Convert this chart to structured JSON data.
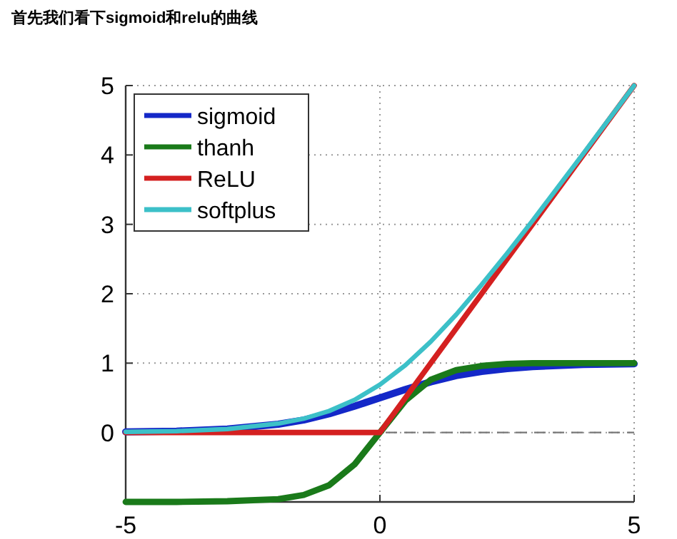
{
  "chart_data": {
    "type": "line",
    "title": "首先我们看下sigmoid和relu的曲线",
    "x": [
      -5,
      -4,
      -3,
      -2,
      -1.5,
      -1,
      -0.5,
      0,
      0.5,
      1,
      1.5,
      2,
      2.5,
      3,
      4,
      5
    ],
    "series": [
      {
        "name": "sigmoid",
        "color": "#1428c8",
        "values": [
          0.01,
          0.02,
          0.05,
          0.12,
          0.18,
          0.27,
          0.38,
          0.5,
          0.62,
          0.73,
          0.82,
          0.88,
          0.92,
          0.95,
          0.98,
          0.99
        ]
      },
      {
        "name": "thanh",
        "color": "#1a7a1a",
        "values": [
          -1,
          -1,
          -0.99,
          -0.96,
          -0.9,
          -0.76,
          -0.46,
          0,
          0.46,
          0.76,
          0.9,
          0.96,
          0.99,
          1,
          1,
          1
        ]
      },
      {
        "name": "ReLU",
        "color": "#d42020",
        "values": [
          0,
          0,
          0,
          0,
          0,
          0,
          0,
          0,
          0.5,
          1,
          1.5,
          2,
          2.5,
          3,
          4,
          5
        ]
      },
      {
        "name": "softplus",
        "color": "#3cc0c8",
        "values": [
          0.01,
          0.02,
          0.05,
          0.13,
          0.2,
          0.31,
          0.47,
          0.69,
          0.97,
          1.31,
          1.7,
          2.13,
          2.58,
          3.05,
          4.02,
          5
        ]
      }
    ],
    "xlim": [
      -5,
      5
    ],
    "xticks": [
      -5,
      0,
      5
    ],
    "ylim": [
      -1,
      5
    ],
    "yticks": [
      {
        "value": -1,
        "label": null
      },
      0,
      1,
      2,
      3,
      4,
      5
    ],
    "grid": true,
    "legend": "top left",
    "marker": "none",
    "line_style": "solid",
    "ref_lines": [
      {
        "axis": "y",
        "value": 0,
        "label": null,
        "color": "#777777",
        "line_style": "dashed"
      }
    ]
  }
}
